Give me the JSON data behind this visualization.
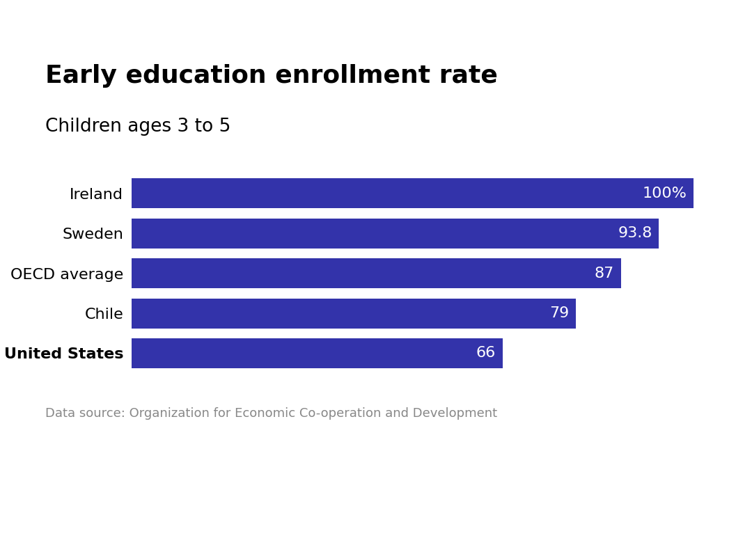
{
  "title": "Early education enrollment rate",
  "subtitle": "Children ages 3 to 5",
  "source": "Data source: Organization for Economic Co-operation and Development",
  "categories": [
    "Ireland",
    "Sweden",
    "OECD average",
    "Chile",
    "United States"
  ],
  "values": [
    100,
    93.8,
    87,
    79,
    66
  ],
  "labels": [
    "100%",
    "93.8",
    "87",
    "79",
    "66"
  ],
  "bar_color": "#3333aa",
  "label_color": "#ffffff",
  "background_color": "#ffffff",
  "title_fontsize": 26,
  "subtitle_fontsize": 19,
  "source_fontsize": 13,
  "label_fontsize": 16,
  "category_fontsize": 16,
  "xlim": [
    0,
    107
  ],
  "bar_height": 0.75
}
